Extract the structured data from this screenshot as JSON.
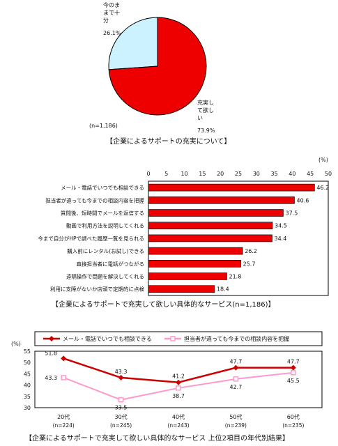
{
  "chart_data": [
    {
      "type": "pie",
      "title": "",
      "labels": [
        "今のまま で十分",
        "充実して 欲しい"
      ],
      "values": [
        26.1,
        73.9
      ],
      "value_labels": [
        "26.1%",
        "73.9%"
      ],
      "colors": [
        "#ccf2ff",
        "#ee0000"
      ],
      "note": "(n=1,186)",
      "caption": "【企業によるサポートの充実について】"
    },
    {
      "type": "bar",
      "orientation": "horizontal",
      "unit": "(%)",
      "categories": [
        "メール・電話でいつでも相談できる",
        "担当者が違っても今までの相談内容を把握",
        "質問後、短時間でメールを返信する",
        "動画で利用方法を説明してくれる",
        "今まで自分がHPで調べた履歴一覧を見られる",
        "購入前にレンタル(お試し)できる",
        "直接担当者に電話がつながる",
        "遠隔操作で問題を解決してくれる",
        "利用に支障がないか店頭で定期的に点検"
      ],
      "values": [
        46.2,
        40.6,
        37.5,
        34.5,
        34.4,
        26.2,
        25.7,
        21.8,
        18.4
      ],
      "value_labels": [
        "46.2",
        "40.6",
        "37.5",
        "34.5",
        "34.4",
        "26.2",
        "25.7",
        "21.8",
        "18.4"
      ],
      "xlim": [
        0,
        50
      ],
      "xticks": [
        "0",
        "5",
        "10",
        "15",
        "20",
        "25",
        "30",
        "35",
        "40",
        "45",
        "50"
      ],
      "color": "#ee0000",
      "caption": "【企業によるサポートで充実して欲しい具体的なサービス(n=1,186)】"
    },
    {
      "type": "line",
      "unit": "(%)",
      "categories": [
        "20代",
        "30代",
        "40代",
        "50代",
        "60代"
      ],
      "category_notes": [
        "(n=224)",
        "(n=245)",
        "(n=243)",
        "(n=239)",
        "(n=235)"
      ],
      "series": [
        {
          "name": "メール・電話でいつでも相談できる",
          "values": [
            51.8,
            43.3,
            41.2,
            47.7,
            47.7
          ],
          "value_labels": [
            "51.8",
            "43.3",
            "41.2",
            "47.7",
            "47.7"
          ],
          "color": "#cc0000"
        },
        {
          "name": "担当者が違っても今までの相談内容を把握",
          "values": [
            43.3,
            33.5,
            38.7,
            42.7,
            45.5
          ],
          "value_labels": [
            "43.3",
            "33.5",
            "38.7",
            "42.7",
            "45.5"
          ],
          "color": "#ff99cc"
        }
      ],
      "ylim": [
        30,
        55
      ],
      "yticks": [
        "55",
        "50",
        "45",
        "40",
        "35",
        "30"
      ],
      "legend": "top",
      "caption": "【企業によるサポートで充実して欲しい具体的なサービス 上位2項目の年代別結果】"
    }
  ]
}
